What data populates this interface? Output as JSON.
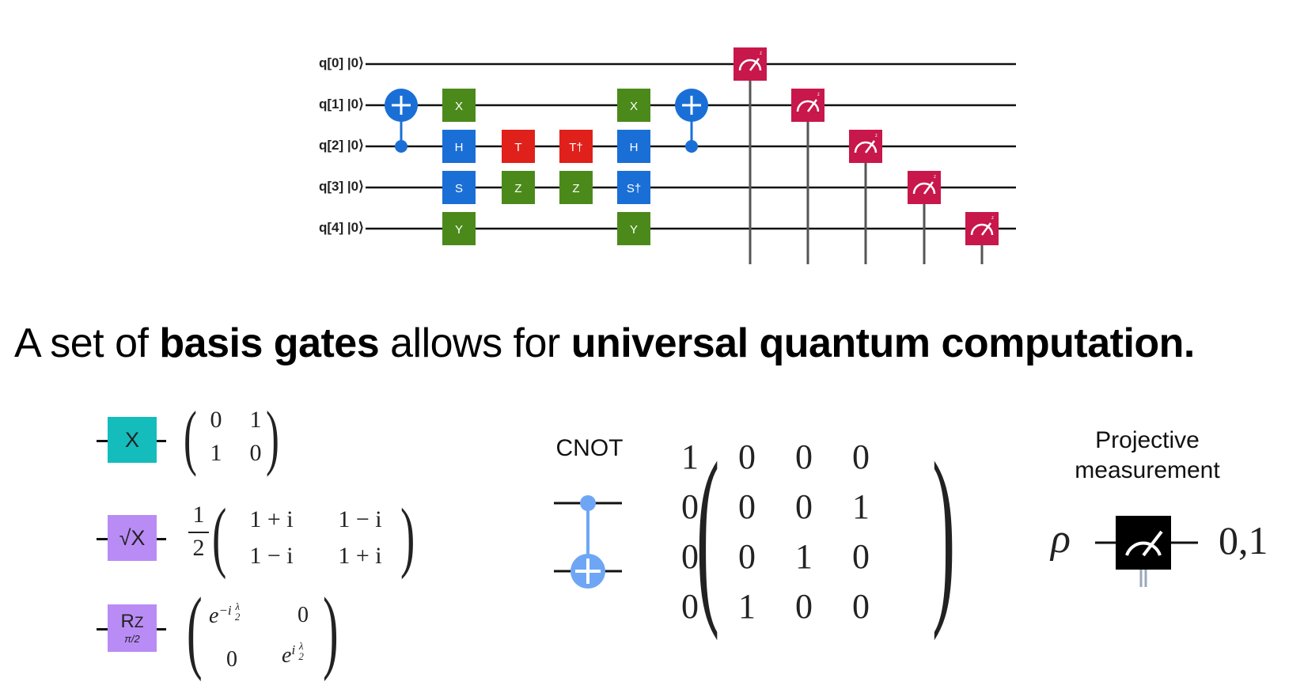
{
  "circuit": {
    "qubits": [
      {
        "label": "q[0]",
        "ket": "|0⟩"
      },
      {
        "label": "q[1]",
        "ket": "|0⟩"
      },
      {
        "label": "q[2]",
        "ket": "|0⟩"
      },
      {
        "label": "q[3]",
        "ket": "|0⟩"
      },
      {
        "label": "q[4]",
        "ket": "|0⟩"
      }
    ],
    "gates": [
      {
        "type": "cnot",
        "control": 2,
        "target": 1,
        "column": 0
      },
      {
        "type": "single",
        "label": "X",
        "qubit": 1,
        "column": 1,
        "color": "#4b8a1a"
      },
      {
        "type": "single",
        "label": "H",
        "qubit": 2,
        "column": 1,
        "color": "#1a6fd6"
      },
      {
        "type": "single",
        "label": "S",
        "qubit": 3,
        "column": 1,
        "color": "#1a6fd6"
      },
      {
        "type": "single",
        "label": "Y",
        "qubit": 4,
        "column": 1,
        "color": "#4b8a1a"
      },
      {
        "type": "single",
        "label": "T",
        "qubit": 2,
        "column": 2,
        "color": "#e0201a"
      },
      {
        "type": "single",
        "label": "Z",
        "qubit": 3,
        "column": 2,
        "color": "#4b8a1a"
      },
      {
        "type": "single",
        "label": "T†",
        "qubit": 2,
        "column": 3,
        "color": "#e0201a"
      },
      {
        "type": "single",
        "label": "Z",
        "qubit": 3,
        "column": 3,
        "color": "#4b8a1a"
      },
      {
        "type": "single",
        "label": "X",
        "qubit": 1,
        "column": 4,
        "color": "#4b8a1a"
      },
      {
        "type": "single",
        "label": "H",
        "qubit": 2,
        "column": 4,
        "color": "#1a6fd6"
      },
      {
        "type": "single",
        "label": "S†",
        "qubit": 3,
        "column": 4,
        "color": "#1a6fd6"
      },
      {
        "type": "single",
        "label": "Y",
        "qubit": 4,
        "column": 4,
        "color": "#4b8a1a"
      },
      {
        "type": "cnot",
        "control": 2,
        "target": 1,
        "column": 5
      },
      {
        "type": "measure",
        "qubit": 0,
        "column": 6
      },
      {
        "type": "measure",
        "qubit": 1,
        "column": 7
      },
      {
        "type": "measure",
        "qubit": 2,
        "column": 8
      },
      {
        "type": "measure",
        "qubit": 3,
        "column": 9
      },
      {
        "type": "measure",
        "qubit": 4,
        "column": 10
      }
    ],
    "colors": {
      "cnot": "#1a6fd6",
      "measure": "#c8174b",
      "wire": "#111111"
    }
  },
  "headline": {
    "part1": "A set of ",
    "bold1": "basis gates",
    "part2": " allows for ",
    "bold2": "universal quantum computation."
  },
  "basis": {
    "x_gate": {
      "label": "X",
      "color": "#14bcbc",
      "matrix": [
        [
          "0",
          "1"
        ],
        [
          "1",
          "0"
        ]
      ]
    },
    "sqrtx_gate": {
      "label": "√X",
      "color": "#b98cf5",
      "prefix_num": "1",
      "prefix_den": "2",
      "matrix": [
        [
          "1 + i",
          "1 − i"
        ],
        [
          "1 − i",
          "1 + i"
        ]
      ]
    },
    "rz_gate": {
      "label": "R",
      "subscript": "Z",
      "param": "π/2",
      "color": "#b98cf5",
      "matrix": [
        [
          "e⁻ⁱ λ/2",
          "0"
        ],
        [
          "0",
          "eⁱ λ/2"
        ]
      ]
    }
  },
  "cnot": {
    "label": "CNOT",
    "color": "#6ea6f5",
    "matrix": [
      [
        "1",
        "0",
        "0",
        "0"
      ],
      [
        "0",
        "0",
        "0",
        "1"
      ],
      [
        "0",
        "0",
        "1",
        "0"
      ],
      [
        "0",
        "1",
        "0",
        "0"
      ]
    ]
  },
  "projective": {
    "label_line1": "Projective",
    "label_line2": "measurement",
    "input": "ρ",
    "output": "0,1"
  }
}
